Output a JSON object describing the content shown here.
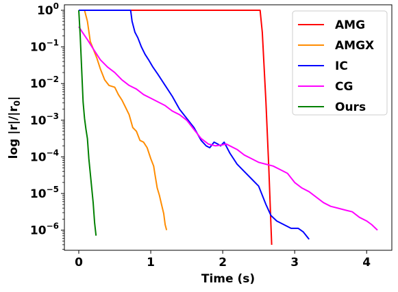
{
  "chart_data": {
    "type": "line",
    "xlabel": "Time (s)",
    "ylabel": "log |r|/|r",
    "ylabel_sub": "0",
    "ylabel_close": "|",
    "xlim": [
      -0.2,
      4.35
    ],
    "ylim_log10": [
      -6.55,
      0.15
    ],
    "y_scale": "log",
    "x_ticks": [
      0,
      1,
      2,
      3,
      4
    ],
    "x_tick_labels": [
      "0",
      "1",
      "2",
      "3",
      "4"
    ],
    "y_ticks": [
      0,
      -1,
      -2,
      -3,
      -4,
      -5,
      -6
    ],
    "y_tick_base": "10",
    "y_tick_exponents": [
      "0",
      "−1",
      "−2",
      "−3",
      "−4",
      "−5",
      "−6"
    ],
    "legend_position": "top-right",
    "series": [
      {
        "name": "AMG",
        "color": "#ff0000",
        "points": [
          [
            0.0,
            0
          ],
          [
            2.52,
            0
          ],
          [
            2.55,
            -0.6
          ],
          [
            2.6,
            -2.5
          ],
          [
            2.64,
            -4.3
          ],
          [
            2.68,
            -6.4
          ]
        ]
      },
      {
        "name": "AMGX",
        "color": "#ff8c00",
        "points": [
          [
            0.0,
            0
          ],
          [
            0.08,
            0
          ],
          [
            0.12,
            -0.3
          ],
          [
            0.16,
            -0.85
          ],
          [
            0.2,
            -1.05
          ],
          [
            0.25,
            -1.3
          ],
          [
            0.3,
            -1.6
          ],
          [
            0.36,
            -1.9
          ],
          [
            0.42,
            -2.05
          ],
          [
            0.5,
            -2.1
          ],
          [
            0.55,
            -2.3
          ],
          [
            0.6,
            -2.45
          ],
          [
            0.65,
            -2.65
          ],
          [
            0.7,
            -2.85
          ],
          [
            0.75,
            -3.2
          ],
          [
            0.8,
            -3.3
          ],
          [
            0.85,
            -3.55
          ],
          [
            0.9,
            -3.6
          ],
          [
            0.95,
            -3.75
          ],
          [
            1.0,
            -4.05
          ],
          [
            1.04,
            -4.25
          ],
          [
            1.06,
            -4.5
          ],
          [
            1.09,
            -4.85
          ],
          [
            1.12,
            -5.05
          ],
          [
            1.15,
            -5.3
          ],
          [
            1.18,
            -5.55
          ],
          [
            1.2,
            -5.85
          ],
          [
            1.22,
            -6.0
          ]
        ]
      },
      {
        "name": "IC",
        "color": "#0000ff",
        "points": [
          [
            0.0,
            0
          ],
          [
            0.72,
            0
          ],
          [
            0.74,
            -0.3
          ],
          [
            0.78,
            -0.6
          ],
          [
            0.82,
            -0.75
          ],
          [
            0.87,
            -1.0
          ],
          [
            0.92,
            -1.2
          ],
          [
            0.97,
            -1.35
          ],
          [
            1.03,
            -1.55
          ],
          [
            1.1,
            -1.75
          ],
          [
            1.2,
            -2.05
          ],
          [
            1.3,
            -2.35
          ],
          [
            1.4,
            -2.7
          ],
          [
            1.5,
            -2.95
          ],
          [
            1.6,
            -3.2
          ],
          [
            1.7,
            -3.55
          ],
          [
            1.77,
            -3.7
          ],
          [
            1.82,
            -3.75
          ],
          [
            1.88,
            -3.6
          ],
          [
            1.93,
            -3.65
          ],
          [
            1.97,
            -3.7
          ],
          [
            2.02,
            -3.6
          ],
          [
            2.1,
            -3.9
          ],
          [
            2.2,
            -4.2
          ],
          [
            2.3,
            -4.4
          ],
          [
            2.4,
            -4.6
          ],
          [
            2.5,
            -4.8
          ],
          [
            2.6,
            -5.3
          ],
          [
            2.67,
            -5.6
          ],
          [
            2.75,
            -5.75
          ],
          [
            2.85,
            -5.85
          ],
          [
            2.95,
            -5.95
          ],
          [
            3.05,
            -5.95
          ],
          [
            3.12,
            -6.05
          ],
          [
            3.2,
            -6.25
          ]
        ]
      },
      {
        "name": "CG",
        "color": "#ff00ff",
        "points": [
          [
            0.0,
            -0.45
          ],
          [
            0.05,
            -0.6
          ],
          [
            0.12,
            -0.8
          ],
          [
            0.2,
            -1.05
          ],
          [
            0.3,
            -1.35
          ],
          [
            0.4,
            -1.55
          ],
          [
            0.5,
            -1.7
          ],
          [
            0.6,
            -1.9
          ],
          [
            0.7,
            -2.05
          ],
          [
            0.8,
            -2.15
          ],
          [
            0.9,
            -2.3
          ],
          [
            1.0,
            -2.4
          ],
          [
            1.1,
            -2.5
          ],
          [
            1.2,
            -2.6
          ],
          [
            1.3,
            -2.75
          ],
          [
            1.4,
            -2.85
          ],
          [
            1.5,
            -3.0
          ],
          [
            1.6,
            -3.25
          ],
          [
            1.7,
            -3.5
          ],
          [
            1.8,
            -3.65
          ],
          [
            1.9,
            -3.7
          ],
          [
            2.0,
            -3.67
          ],
          [
            2.05,
            -3.65
          ],
          [
            2.1,
            -3.7
          ],
          [
            2.2,
            -3.8
          ],
          [
            2.3,
            -3.95
          ],
          [
            2.4,
            -4.05
          ],
          [
            2.5,
            -4.15
          ],
          [
            2.6,
            -4.2
          ],
          [
            2.7,
            -4.25
          ],
          [
            2.8,
            -4.35
          ],
          [
            2.9,
            -4.45
          ],
          [
            3.0,
            -4.7
          ],
          [
            3.1,
            -4.85
          ],
          [
            3.2,
            -4.95
          ],
          [
            3.3,
            -5.1
          ],
          [
            3.4,
            -5.25
          ],
          [
            3.5,
            -5.35
          ],
          [
            3.6,
            -5.4
          ],
          [
            3.7,
            -5.45
          ],
          [
            3.8,
            -5.5
          ],
          [
            3.9,
            -5.65
          ],
          [
            4.0,
            -5.75
          ],
          [
            4.07,
            -5.85
          ],
          [
            4.15,
            -6.0
          ]
        ]
      },
      {
        "name": "Ours",
        "color": "#008000",
        "points": [
          [
            0.0,
            0
          ],
          [
            0.02,
            -0.7
          ],
          [
            0.04,
            -1.6
          ],
          [
            0.06,
            -2.5
          ],
          [
            0.08,
            -2.95
          ],
          [
            0.1,
            -3.25
          ],
          [
            0.12,
            -3.5
          ],
          [
            0.14,
            -4.05
          ],
          [
            0.16,
            -4.45
          ],
          [
            0.18,
            -4.85
          ],
          [
            0.2,
            -5.25
          ],
          [
            0.22,
            -5.8
          ],
          [
            0.24,
            -6.15
          ]
        ]
      }
    ]
  }
}
